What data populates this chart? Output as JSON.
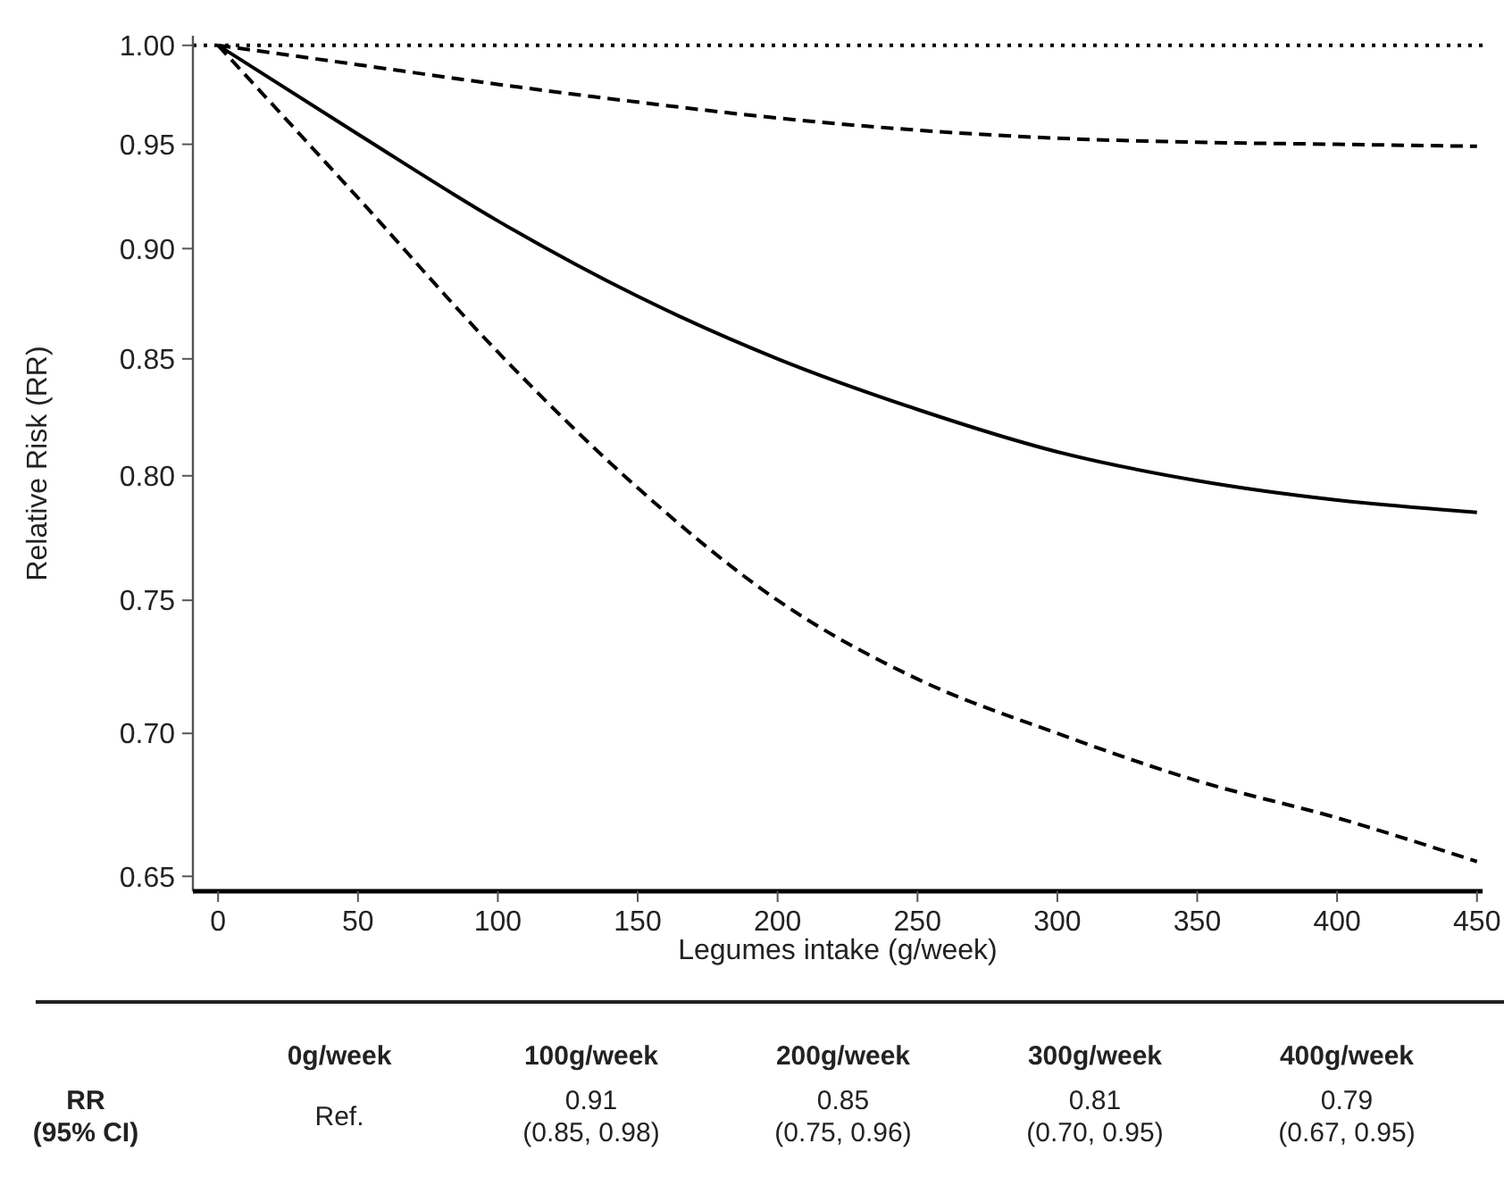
{
  "chart_data": {
    "type": "line",
    "xlabel": "Legumes intake (g/week)",
    "ylabel": "Relative Risk (RR)",
    "log": "y",
    "xlim": [
      -9,
      452
    ],
    "xticks": [
      0,
      50,
      100,
      150,
      200,
      250,
      300,
      350,
      400,
      450
    ],
    "ylim": [
      0.645,
      1.005
    ],
    "yticks": [
      {
        "value": 0.65,
        "label": "0.65"
      },
      {
        "value": 0.7,
        "label": "0.70"
      },
      {
        "value": 0.75,
        "label": "0.75"
      },
      {
        "value": 0.8,
        "label": "0.80"
      },
      {
        "value": 0.85,
        "label": "0.85"
      },
      {
        "value": 0.9,
        "label": "0.90"
      },
      {
        "value": 0.95,
        "label": "0.95"
      },
      {
        "value": 1,
        "label": "1.00"
      }
    ],
    "grid": false,
    "marker": "none",
    "x": [
      0,
      50,
      100,
      150,
      200,
      250,
      300,
      350,
      400,
      450
    ],
    "series": [
      {
        "color": "#000000",
        "line_style": "solid",
        "values": [
          1,
          0.955,
          0.913,
          0.878,
          0.85,
          0.828,
          0.81,
          0.798,
          0.79,
          0.785
        ]
      },
      {
        "color": "#000000",
        "line_style": "dashed",
        "values": [
          1,
          0.99,
          0.98,
          0.971,
          0.963,
          0.957,
          0.953,
          0.951,
          0.95,
          0.949
        ]
      },
      {
        "color": "#000000",
        "line_style": "dashed",
        "values": [
          1,
          0.924,
          0.853,
          0.795,
          0.75,
          0.72,
          0.7,
          0.683,
          0.67,
          0.655
        ]
      }
    ],
    "ref_lines": [
      {
        "axis": "y",
        "value": 1,
        "color": "#000000",
        "line_style": "dotted"
      }
    ],
    "annotations": [
      "RR\n(95% CI)",
      "0g/week",
      "100g/week",
      "200g/week",
      "300g/week",
      "400g/week",
      "Ref.",
      "0.91\n(0.85, 0.98)",
      "0.85\n(0.75, 0.96)",
      "0.81\n(0.70, 0.95)",
      "0.79\n(0.67, 0.95)"
    ]
  }
}
